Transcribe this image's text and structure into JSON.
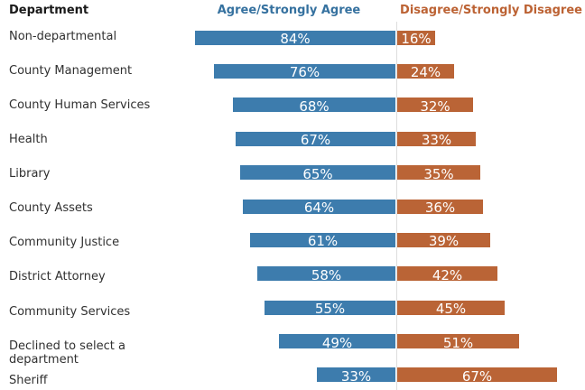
{
  "chart_data": {
    "type": "bar",
    "variant": "diverging-horizontal-stacked",
    "title": "",
    "column_header": "Department",
    "categories": [
      "Non-departmental",
      "County Management",
      "County Human Services",
      "Health",
      "Library",
      "County Assets",
      "Community Justice",
      "District Attorney",
      "Community Services",
      "Declined to select a department",
      "Sheriff"
    ],
    "series": [
      {
        "name": "Agree/Strongly Agree",
        "side": "left",
        "color": "#3d7cad",
        "header_color": "#35719f",
        "values": [
          84,
          76,
          68,
          67,
          65,
          64,
          61,
          58,
          55,
          49,
          33
        ],
        "labels": [
          "84%",
          "76%",
          "68%",
          "67%",
          "65%",
          "64%",
          "61%",
          "58%",
          "55%",
          "49%",
          "33%"
        ]
      },
      {
        "name": "Disagree/Strongly Disagree",
        "side": "right",
        "color": "#ba6436",
        "header_color": "#bc6233",
        "values": [
          16,
          24,
          32,
          33,
          35,
          36,
          39,
          42,
          45,
          51,
          67
        ],
        "labels": [
          "16%",
          "24%",
          "32%",
          "33%",
          "35%",
          "36%",
          "39%",
          "42%",
          "45%",
          "51%",
          "67%"
        ]
      }
    ],
    "unit": "%",
    "xlim": [
      0,
      100
    ],
    "axis": {
      "center_line_color": "#dddddd",
      "grid": "off",
      "value_label_position": "inside-center",
      "value_label_color": "#ffffff"
    },
    "text_colors": {
      "column_header": "#1a1a1a",
      "category_label": "#303030"
    },
    "background": "#ffffff"
  }
}
